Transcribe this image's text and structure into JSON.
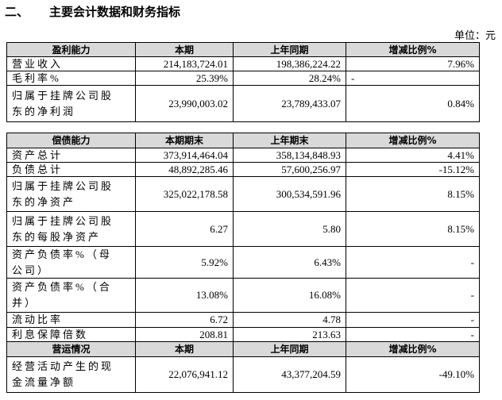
{
  "heading": {
    "number": "二、",
    "title": "主要会计数据和财务指标"
  },
  "unit": "单位：元",
  "sections": [
    {
      "header": [
        "盈利能力",
        "本期",
        "上年同期",
        "增减比例%"
      ],
      "rows": [
        [
          "营业收入",
          "214,183,724.01",
          "198,386,224.22",
          "7.96%"
        ],
        [
          "毛利率%",
          "25.39%",
          "28.24%",
          "-"
        ],
        [
          "归属于挂牌公司股东的净利润",
          "23,990,003.02",
          "23,789,433.07",
          "0.84%"
        ]
      ]
    },
    {
      "header": [
        "偿债能力",
        "本期期末",
        "上年期末",
        "增减比例%"
      ],
      "rows": [
        [
          "资产总计",
          "373,914,464.04",
          "358,134,848.93",
          "4.41%"
        ],
        [
          "负债总计",
          "48,892,285.46",
          "57,600,256.97",
          "-15.12%"
        ],
        [
          "归属于挂牌公司股东的净资产",
          "325,022,178.58",
          "300,534,591.96",
          "8.15%"
        ],
        [
          "归属于挂牌公司股东的每股净资产",
          "6.27",
          "5.80",
          "8.15%"
        ],
        [
          "资产负债率%（母公司）",
          "5.92%",
          "6.43%",
          "-"
        ],
        [
          "资产负债率%（合并）",
          "13.08%",
          "16.08%",
          "-"
        ],
        [
          "流动比率",
          "6.72",
          "4.78",
          "-"
        ],
        [
          "利息保障倍数",
          "208.81",
          "213.63",
          "-"
        ]
      ]
    },
    {
      "header": [
        "营运情况",
        "本期",
        "上年同期",
        "增减比例%"
      ],
      "rows": [
        [
          "经营活动产生的现金流量净额",
          "22,076,941.12",
          "43,377,204.59",
          "-49.10%"
        ]
      ]
    }
  ]
}
